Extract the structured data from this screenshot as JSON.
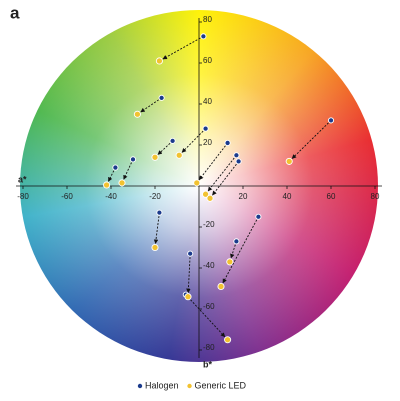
{
  "chart_data": {
    "type": "scatter",
    "panel_label": "a",
    "x_label": "a*",
    "y_label": "b*",
    "xlim": [
      -80,
      80
    ],
    "ylim": [
      -80,
      80
    ],
    "xticks": [
      -80,
      -60,
      -40,
      -20,
      20,
      40,
      60,
      80
    ],
    "yticks": [
      -80,
      -60,
      -40,
      -20,
      20,
      40,
      60,
      80
    ],
    "series": [
      {
        "name": "Halogen",
        "color": "#1b3b8c",
        "x": [
          2,
          -17,
          3,
          -12,
          -30,
          -38,
          13,
          17,
          18,
          60,
          -18,
          -4,
          17,
          27,
          -6
        ],
        "values": [
          73,
          43,
          28,
          22,
          13,
          9,
          21,
          15,
          12,
          32,
          -13,
          -33,
          -27,
          -15,
          -53
        ]
      },
      {
        "name": "Generic LED",
        "color": "#f2c230",
        "x": [
          -18,
          -28,
          -9,
          -20,
          -35,
          -42,
          -1,
          3,
          5,
          41,
          -20,
          -5,
          14,
          10,
          13
        ],
        "values": [
          61,
          35,
          15,
          14,
          1.5,
          0.5,
          1.5,
          -4,
          -6,
          12,
          -30,
          -54,
          -37,
          -49,
          -75
        ]
      }
    ]
  }
}
